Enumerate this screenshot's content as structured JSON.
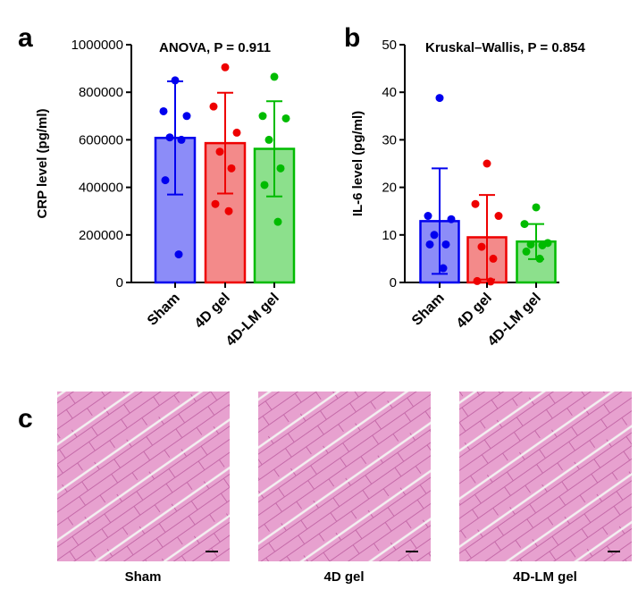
{
  "panels": {
    "a": "a",
    "b": "b",
    "c": "c"
  },
  "chart_data": [
    {
      "type": "bar",
      "panel": "a",
      "categories": [
        "Sham",
        "4D gel",
        "4D-LM gel"
      ],
      "values": [
        608000,
        586000,
        562000
      ],
      "sd": [
        238000,
        212000,
        200000
      ],
      "points": [
        [
          850000,
          720000,
          700000,
          610000,
          600000,
          430000,
          118000
        ],
        [
          905000,
          740000,
          630000,
          550000,
          480000,
          330000,
          300000
        ],
        [
          865000,
          700000,
          690000,
          600000,
          480000,
          410000,
          255000
        ]
      ],
      "colors": [
        "#0000ee",
        "#ee0000",
        "#00bb00"
      ],
      "fill_colors": [
        "#8c8cf8",
        "#f38a8a",
        "#8ce08c"
      ],
      "annotation": "ANOVA, P = 0.911",
      "title": "",
      "xlabel": "",
      "ylabel": "CRP level (pg/ml)",
      "ylim": [
        0,
        1000000
      ],
      "yticks": [
        "0",
        "200000",
        "400000",
        "600000",
        "800000",
        "1000000"
      ],
      "grid": false
    },
    {
      "type": "bar",
      "panel": "b",
      "categories": [
        "Sham",
        "4D gel",
        "4D-LM gel"
      ],
      "values": [
        12.9,
        9.5,
        8.6
      ],
      "sd": [
        11.1,
        8.9,
        3.7
      ],
      "points": [
        [
          38.8,
          14.0,
          13.3,
          10.0,
          8.0,
          8.0,
          3.0
        ],
        [
          25.0,
          16.5,
          14.0,
          7.5,
          5.0,
          0.3,
          0.2
        ],
        [
          15.8,
          12.3,
          8.3,
          8.0,
          7.8,
          6.5,
          5.0
        ]
      ],
      "colors": [
        "#0000ee",
        "#ee0000",
        "#00bb00"
      ],
      "fill_colors": [
        "#8c8cf8",
        "#f38a8a",
        "#8ce08c"
      ],
      "annotation": "Kruskal–Wallis, P = 0.854",
      "title": "",
      "xlabel": "",
      "ylabel": "IL-6 level (pg/ml)",
      "ylim": [
        0,
        50
      ],
      "yticks": [
        "0",
        "10",
        "20",
        "30",
        "40",
        "50"
      ],
      "grid": false
    }
  ],
  "histology": {
    "images": [
      {
        "label": "Sham"
      },
      {
        "label": "4D gel"
      },
      {
        "label": "4D-LM gel"
      }
    ]
  }
}
